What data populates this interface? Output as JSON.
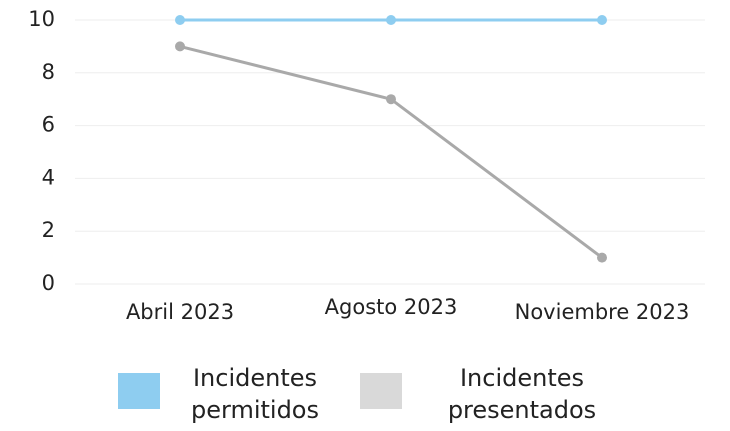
{
  "chart_data": {
    "type": "line",
    "categories": [
      "Abril 2023",
      "Agosto 2023",
      "Noviembre 2023"
    ],
    "series": [
      {
        "name": "Incidentes permitidos",
        "color": "#8ecdf0",
        "values": [
          10,
          10,
          10
        ]
      },
      {
        "name": "Incidentes presentados",
        "color": "#a9a9a9",
        "values": [
          9,
          7,
          1
        ]
      }
    ],
    "ylim": [
      0,
      10
    ],
    "yticks": [
      0,
      2,
      4,
      6,
      8,
      10
    ],
    "grid": true
  }
}
